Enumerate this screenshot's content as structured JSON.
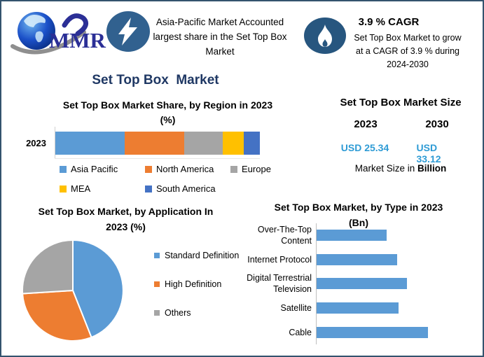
{
  "canvas": {
    "border_color": "#34536E",
    "background": "#FFFFFF"
  },
  "header": {
    "logo": {
      "text": "MMR",
      "color": "#2B2F96"
    },
    "highlight": {
      "icon": "lightning-bolt",
      "icon_bg": "#31618F",
      "lines": [
        "Asia-Pacific Market Accounted",
        "largest share in the Set Top Box",
        "Market"
      ]
    },
    "cagr": {
      "icon": "flame",
      "icon_bg": "#27567F",
      "title": "3.9 % CAGR",
      "lines": [
        "Set Top Box Market to grow",
        "at a CAGR of 3.9 % during",
        "2024-2030"
      ]
    }
  },
  "main_title": {
    "text": "Set Top Box  Market",
    "color": "#1F3864"
  },
  "market_size": {
    "title": "Set Top Box Market Size",
    "years": [
      "2023",
      "2030"
    ],
    "values": [
      "USD 25.34",
      "USD 33.12"
    ],
    "value_color": "#2E9BD5",
    "caption_normal": "Market Size in ",
    "caption_bold": "Billion"
  },
  "chart_data": [
    {
      "type": "bar",
      "stacked": true,
      "orientation": "horizontal",
      "title_lines": [
        "Set Top Box Market Share, by Region in 2023",
        "(%)"
      ],
      "categories": [
        "2023"
      ],
      "series": [
        {
          "name": "Asia Pacific",
          "color": "#5B9BD5",
          "values": [
            34
          ]
        },
        {
          "name": "North America",
          "color": "#ED7D31",
          "values": [
            29
          ]
        },
        {
          "name": "Europe",
          "color": "#A5A5A5",
          "values": [
            19
          ]
        },
        {
          "name": "MEA",
          "color": "#FFC000",
          "values": [
            10
          ]
        },
        {
          "name": "South America",
          "color": "#4472C4",
          "values": [
            8
          ]
        }
      ],
      "xlim": [
        0,
        100
      ],
      "legend_position": "bottom"
    },
    {
      "type": "pie",
      "title_lines": [
        "Set Top Box Market, by Application In",
        "2023 (%)"
      ],
      "labels": [
        "Standard Definition",
        "High Definition",
        "Others"
      ],
      "values": [
        44,
        30,
        26
      ],
      "colors": [
        "#5B9BD5",
        "#ED7D31",
        "#A5A5A5"
      ],
      "legend_position": "right"
    },
    {
      "type": "bar",
      "orientation": "horizontal",
      "title_lines": [
        "Set Top Box Market, by Type in 2023",
        "(Bn)"
      ],
      "categories": [
        "Over-The-Top Content",
        "Internet Protocol",
        "Digital Terrestrial Television",
        "Satellite",
        "Cable"
      ],
      "values": [
        4.1,
        4.7,
        5.3,
        4.8,
        6.5
      ],
      "bar_color": "#5B9BD5",
      "xlim": [
        0,
        8.6
      ],
      "grid": false
    }
  ]
}
